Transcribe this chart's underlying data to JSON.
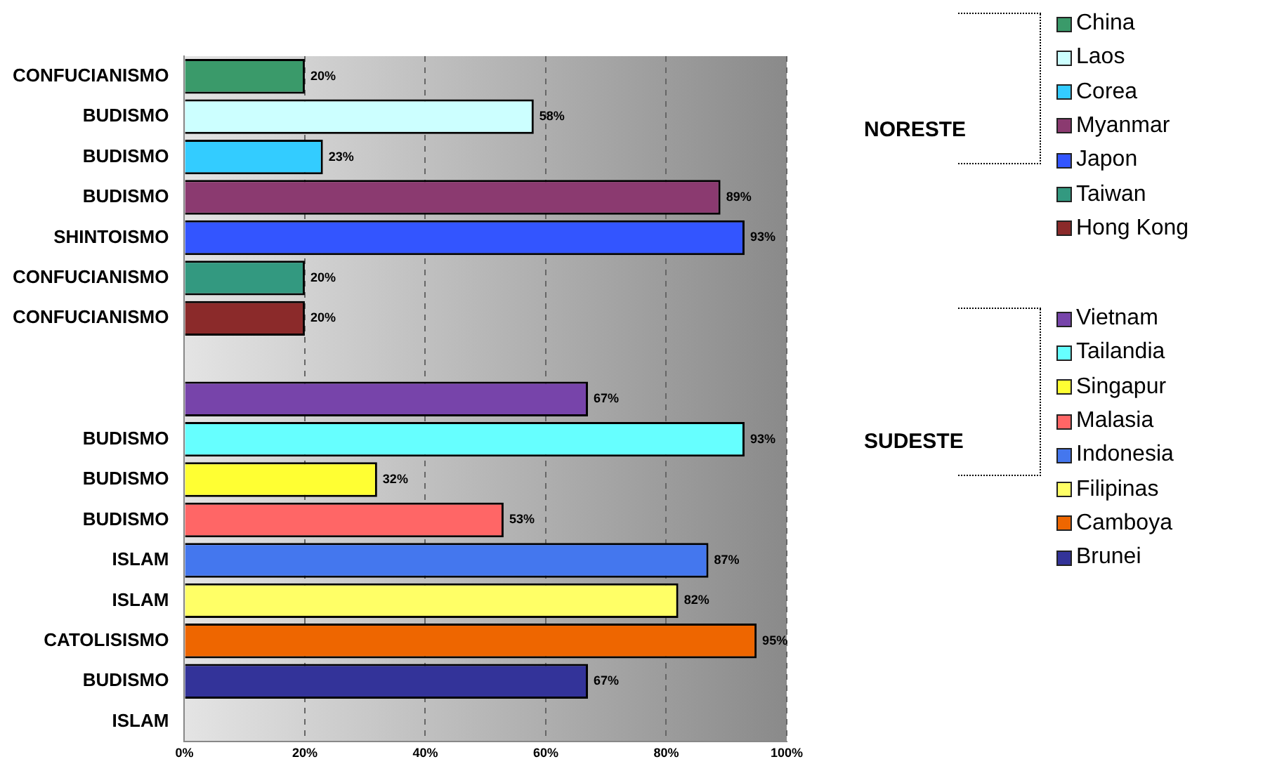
{
  "chart_data": {
    "type": "bar",
    "orientation": "horizontal",
    "categories": [
      "CONFUCIANISMO",
      "BUDISMO",
      "BUDISMO",
      "BUDISMO",
      "SHINTOISMO",
      "CONFUCIANISMO",
      "CONFUCIANISMO",
      null,
      null,
      "BUDISMO",
      "BUDISMO",
      "BUDISMO",
      "ISLAM",
      "ISLAM",
      "CATOLISISMO",
      "BUDISMO",
      "ISLAM"
    ],
    "series": [
      {
        "name": "China",
        "color": "#3a9a6a",
        "values": [
          20,
          null,
          null,
          null,
          null,
          null,
          null,
          null,
          null,
          null,
          null,
          null,
          null,
          null,
          null,
          null,
          null
        ],
        "value_labels": [
          "20%",
          null,
          null,
          null,
          null,
          null,
          null,
          null,
          null,
          null,
          null,
          null,
          null,
          null,
          null,
          null,
          null
        ]
      },
      {
        "name": "Laos",
        "color": "#ccffff",
        "values": [
          null,
          58,
          null,
          null,
          null,
          null,
          null,
          null,
          null,
          null,
          null,
          null,
          null,
          null,
          null,
          null,
          null
        ],
        "value_labels": [
          null,
          "58%",
          null,
          null,
          null,
          null,
          null,
          null,
          null,
          null,
          null,
          null,
          null,
          null,
          null,
          null,
          null
        ]
      },
      {
        "name": "Corea",
        "color": "#33ccff",
        "values": [
          null,
          null,
          23,
          null,
          null,
          null,
          null,
          null,
          null,
          null,
          null,
          null,
          null,
          null,
          null,
          null,
          null
        ],
        "value_labels": [
          null,
          null,
          "23%",
          null,
          null,
          null,
          null,
          null,
          null,
          null,
          null,
          null,
          null,
          null,
          null,
          null,
          null
        ]
      },
      {
        "name": "Myanmar",
        "color": "#8b3a70",
        "values": [
          null,
          null,
          null,
          89,
          null,
          null,
          null,
          null,
          null,
          null,
          null,
          null,
          null,
          null,
          null,
          null,
          null
        ],
        "value_labels": [
          null,
          null,
          null,
          "89%",
          null,
          null,
          null,
          null,
          null,
          null,
          null,
          null,
          null,
          null,
          null,
          null,
          null
        ]
      },
      {
        "name": "Japon",
        "color": "#3355ff",
        "values": [
          null,
          null,
          null,
          null,
          93,
          null,
          null,
          null,
          null,
          null,
          null,
          null,
          null,
          null,
          null,
          null,
          null
        ],
        "value_labels": [
          null,
          null,
          null,
          null,
          "93%",
          null,
          null,
          null,
          null,
          null,
          null,
          null,
          null,
          null,
          null,
          null,
          null
        ]
      },
      {
        "name": "Taiwan",
        "color": "#339980",
        "values": [
          null,
          null,
          null,
          null,
          null,
          20,
          null,
          null,
          null,
          null,
          null,
          null,
          null,
          null,
          null,
          null,
          null
        ],
        "value_labels": [
          null,
          null,
          null,
          null,
          null,
          "20%",
          null,
          null,
          null,
          null,
          null,
          null,
          null,
          null,
          null,
          null,
          null
        ]
      },
      {
        "name": "Hong Kong",
        "color": "#8b2a2a",
        "values": [
          null,
          null,
          null,
          null,
          null,
          null,
          20,
          null,
          null,
          null,
          null,
          null,
          null,
          null,
          null,
          null,
          null
        ],
        "value_labels": [
          null,
          null,
          null,
          null,
          null,
          null,
          "20%",
          null,
          null,
          null,
          null,
          null,
          null,
          null,
          null,
          null,
          null
        ]
      },
      {
        "name": "Vietnam",
        "color": "#7744aa",
        "values": [
          null,
          null,
          null,
          null,
          null,
          null,
          null,
          null,
          67,
          null,
          null,
          null,
          null,
          null,
          null,
          null,
          null
        ],
        "value_labels": [
          null,
          null,
          null,
          null,
          null,
          null,
          null,
          null,
          "67%",
          null,
          null,
          null,
          null,
          null,
          null,
          null,
          null
        ]
      },
      {
        "name": "Tailandia",
        "color": "#66ffff",
        "values": [
          null,
          null,
          null,
          null,
          null,
          null,
          null,
          null,
          null,
          93,
          null,
          null,
          null,
          null,
          null,
          null,
          null
        ],
        "value_labels": [
          null,
          null,
          null,
          null,
          null,
          null,
          null,
          null,
          null,
          "93%",
          null,
          null,
          null,
          null,
          null,
          null,
          null
        ]
      },
      {
        "name": "Singapur",
        "color": "#ffff33",
        "values": [
          null,
          null,
          null,
          null,
          null,
          null,
          null,
          null,
          null,
          null,
          32,
          null,
          null,
          null,
          null,
          null,
          null
        ],
        "value_labels": [
          null,
          null,
          null,
          null,
          null,
          null,
          null,
          null,
          null,
          null,
          "32%",
          null,
          null,
          null,
          null,
          null,
          null
        ]
      },
      {
        "name": "Malasia",
        "color": "#ff6666",
        "values": [
          null,
          null,
          null,
          null,
          null,
          null,
          null,
          null,
          null,
          null,
          null,
          53,
          null,
          null,
          null,
          null,
          null
        ],
        "value_labels": [
          null,
          null,
          null,
          null,
          null,
          null,
          null,
          null,
          null,
          null,
          null,
          "53%",
          null,
          null,
          null,
          null,
          null
        ]
      },
      {
        "name": "Indonesia",
        "color": "#4477ee",
        "values": [
          null,
          null,
          null,
          null,
          null,
          null,
          null,
          null,
          null,
          null,
          null,
          null,
          87,
          null,
          null,
          null,
          null
        ],
        "value_labels": [
          null,
          null,
          null,
          null,
          null,
          null,
          null,
          null,
          null,
          null,
          null,
          null,
          "87%",
          null,
          null,
          null,
          null
        ]
      },
      {
        "name": "Filipinas",
        "color": "#ffff66",
        "values": [
          null,
          null,
          null,
          null,
          null,
          null,
          null,
          null,
          null,
          null,
          null,
          null,
          null,
          82,
          null,
          null,
          null
        ],
        "value_labels": [
          null,
          null,
          null,
          null,
          null,
          null,
          null,
          null,
          null,
          null,
          null,
          null,
          null,
          "82%",
          null,
          null,
          null
        ]
      },
      {
        "name": "Camboya",
        "color": "#ee6600",
        "values": [
          null,
          null,
          null,
          null,
          null,
          null,
          null,
          null,
          null,
          null,
          null,
          null,
          null,
          null,
          95,
          null,
          null
        ],
        "value_labels": [
          null,
          null,
          null,
          null,
          null,
          null,
          null,
          null,
          null,
          null,
          null,
          null,
          null,
          null,
          "95%",
          null,
          null
        ]
      },
      {
        "name": "Brunei",
        "color": "#333399",
        "values": [
          null,
          null,
          null,
          null,
          null,
          null,
          null,
          null,
          null,
          null,
          null,
          null,
          null,
          null,
          null,
          67,
          null
        ],
        "value_labels": [
          null,
          null,
          null,
          null,
          null,
          null,
          null,
          null,
          null,
          null,
          null,
          null,
          null,
          null,
          null,
          "67%",
          null
        ]
      }
    ],
    "xlim": [
      0,
      100
    ],
    "xticks": [
      {
        "value": 0,
        "label": "0%"
      },
      {
        "value": 20,
        "label": "20%"
      },
      {
        "value": 40,
        "label": "40%"
      },
      {
        "value": 60,
        "label": "60%"
      },
      {
        "value": 80,
        "label": "80%"
      },
      {
        "value": 100,
        "label": "100%"
      }
    ],
    "grid": "x",
    "legend": "right",
    "annotations": [
      "NORESTE",
      "SUDESTE"
    ]
  }
}
